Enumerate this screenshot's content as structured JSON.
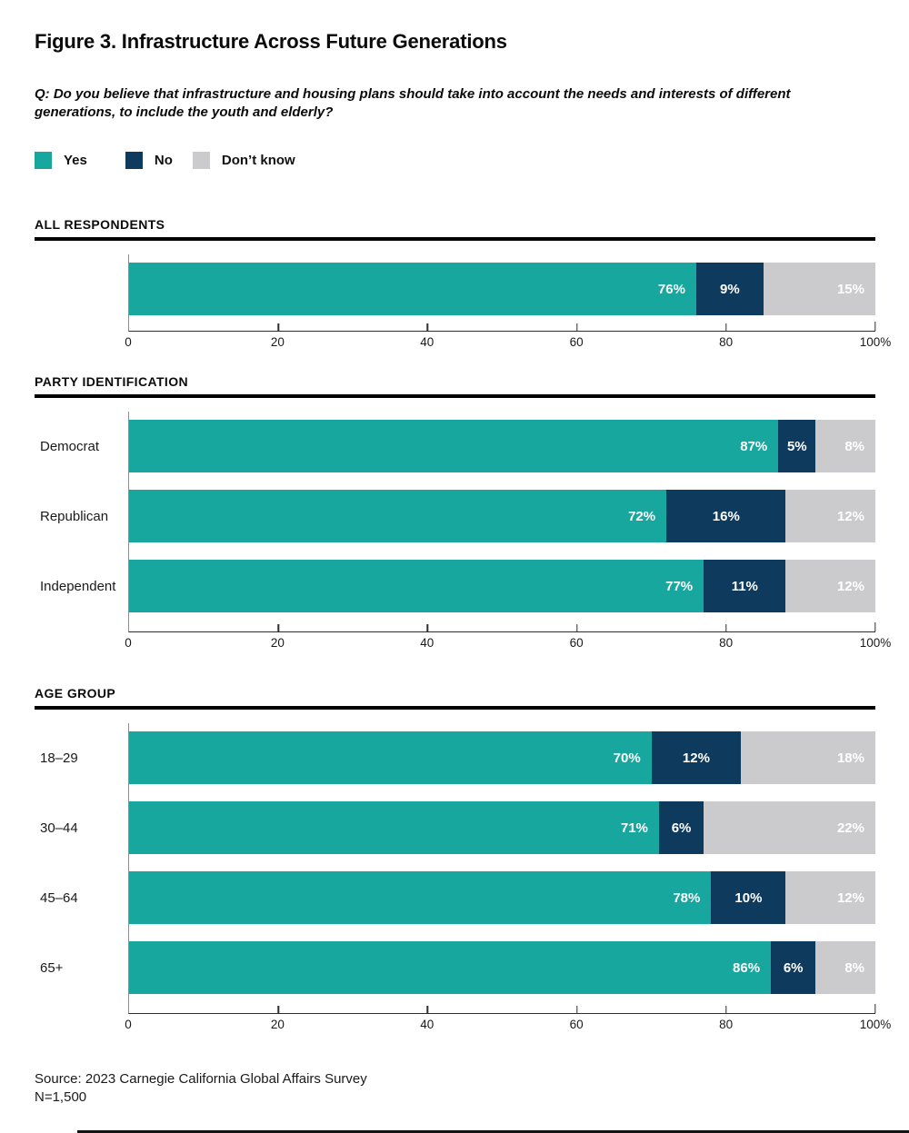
{
  "title": "Figure 3. Infrastructure Across Future Generations",
  "question": "Q: Do you believe that infrastructure and housing plans should take into account the needs and interests of different generations, to include the youth and elderly?",
  "colors": {
    "yes": "#17A79E",
    "no": "#0E3A5E",
    "dont_know": "#CBCBCD",
    "axis_line": "#2D2D2D",
    "y_axis_line": "#8F8F8F"
  },
  "legend": {
    "items": [
      {
        "label": "Yes",
        "color": "#17A79E"
      },
      {
        "label": "No",
        "color": "#0E3A5E"
      },
      {
        "label": "Don’t know",
        "color": "#CBCBCD"
      }
    ]
  },
  "chart_data": [
    {
      "type": "bar",
      "stacked": true,
      "orientation": "horizontal",
      "section": "ALL RESPONDENTS",
      "categories": [
        ""
      ],
      "series": [
        {
          "name": "Yes",
          "color": "#17A79E",
          "label_align": "right",
          "values": [
            76
          ]
        },
        {
          "name": "No",
          "color": "#0E3A5E",
          "label_align": "center",
          "values": [
            9
          ]
        },
        {
          "name": "Don’t know",
          "color": "#CBCBCD",
          "label_align": "right",
          "values": [
            15
          ]
        }
      ],
      "xlim": [
        0,
        100
      ],
      "grid": false,
      "x_tick_values": [
        0,
        20,
        40,
        60,
        80,
        100
      ],
      "x_tick_labels": [
        "0",
        "20",
        "40",
        "60",
        "80",
        "100%"
      ]
    },
    {
      "type": "bar",
      "stacked": true,
      "orientation": "horizontal",
      "section": "PARTY IDENTIFICATION",
      "categories": [
        "Democrat",
        "Republican",
        "Independent"
      ],
      "series": [
        {
          "name": "Yes",
          "color": "#17A79E",
          "label_align": "right",
          "values": [
            87,
            72,
            77
          ]
        },
        {
          "name": "No",
          "color": "#0E3A5E",
          "label_align": "center",
          "values": [
            5,
            16,
            11
          ]
        },
        {
          "name": "Don’t know",
          "color": "#CBCBCD",
          "label_align": "right",
          "values": [
            8,
            12,
            12
          ]
        }
      ],
      "xlim": [
        0,
        100
      ],
      "grid": false,
      "x_tick_values": [
        0,
        20,
        40,
        60,
        80,
        100
      ],
      "x_tick_labels": [
        "0",
        "20",
        "40",
        "60",
        "80",
        "100%"
      ]
    },
    {
      "type": "bar",
      "stacked": true,
      "orientation": "horizontal",
      "section": "AGE GROUP",
      "categories": [
        "18–29",
        "30–44",
        "45–64",
        "65+"
      ],
      "series": [
        {
          "name": "Yes",
          "color": "#17A79E",
          "label_align": "right",
          "values": [
            70,
            71,
            78,
            86
          ]
        },
        {
          "name": "No",
          "color": "#0E3A5E",
          "label_align": "center",
          "values": [
            12,
            6,
            10,
            6
          ]
        },
        {
          "name": "Don’t know",
          "color": "#CBCBCD",
          "label_align": "right",
          "values": [
            18,
            22,
            12,
            8
          ]
        }
      ],
      "xlim": [
        0,
        100
      ],
      "grid": false,
      "x_tick_values": [
        0,
        20,
        40,
        60,
        80,
        100
      ],
      "x_tick_labels": [
        "0",
        "20",
        "40",
        "60",
        "80",
        "100%"
      ]
    }
  ],
  "source": {
    "line1": "Source: 2023 Carnegie California Global Affairs Survey",
    "line2": "N=1,500"
  }
}
